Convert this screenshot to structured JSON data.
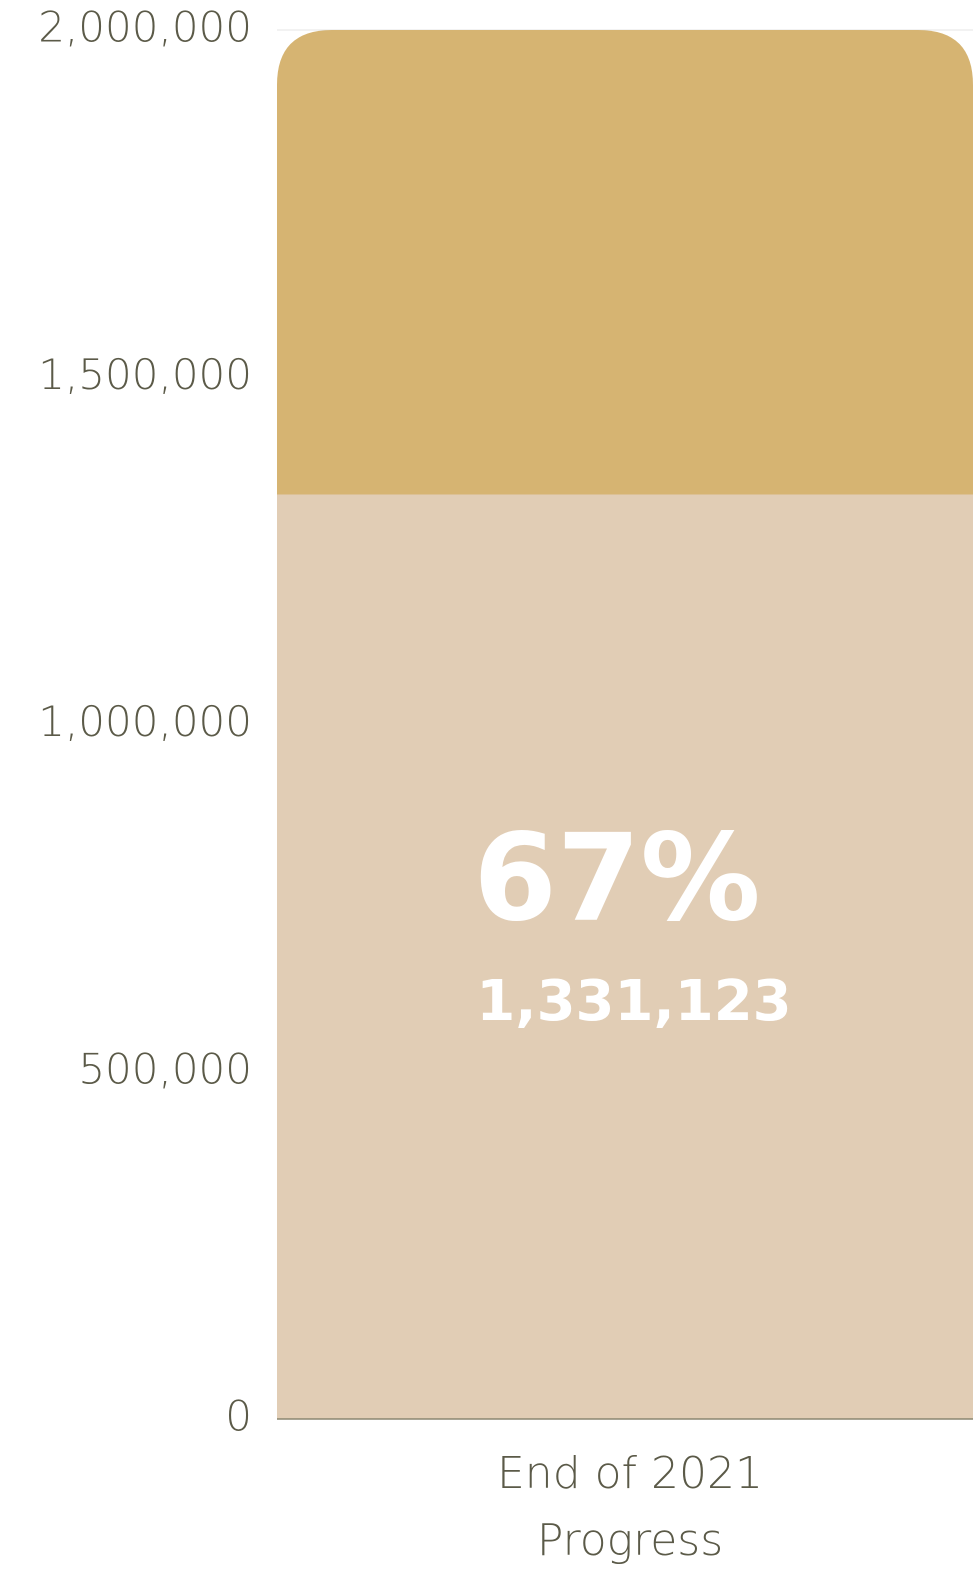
{
  "chart_data": {
    "type": "stacked_bar",
    "categories": [
      "End of 2021 Progress"
    ],
    "series": [
      {
        "color": "#e1cdb5",
        "values": [
          1331123
        ],
        "value_labels": [
          "1,331,123"
        ]
      },
      {
        "color": "#d6b472",
        "values": [
          668877
        ]
      }
    ],
    "annotations": [
      {
        "text": "67%"
      }
    ],
    "ylim": [
      0,
      2000000
    ],
    "yticks": [
      0,
      {
        "value": 500000,
        "label": "500,000"
      },
      {
        "value": 1000000,
        "label": "1,000,000"
      },
      {
        "value": 1500000,
        "label": "1,500,000"
      },
      {
        "value": 2000000,
        "label": "2,000,000"
      }
    ],
    "grid": true
  }
}
